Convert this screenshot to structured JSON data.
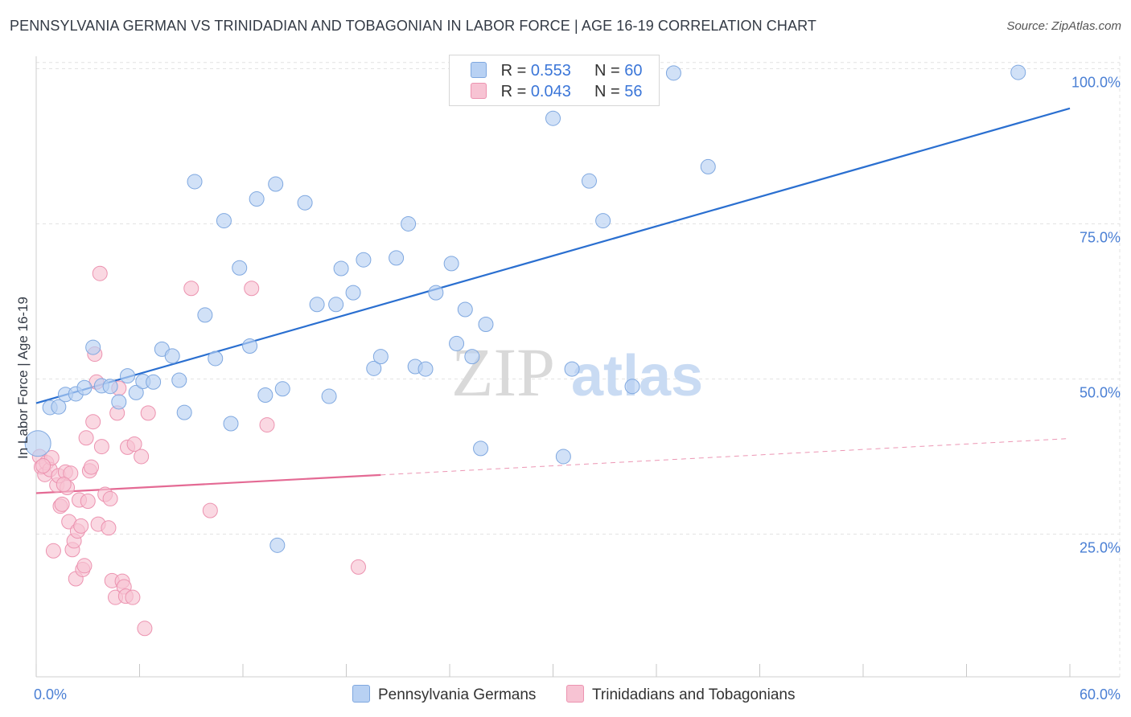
{
  "header": {
    "title": "PENNSYLVANIA GERMAN VS TRINIDADIAN AND TOBAGONIAN IN LABOR FORCE | AGE 16-19 CORRELATION CHART",
    "source": "Source: ZipAtlas.com"
  },
  "legend": {
    "series1": {
      "r_label": "R =",
      "r_value": "0.553",
      "n_label": "N =",
      "n_value": "60"
    },
    "series2": {
      "r_label": "R =",
      "r_value": "0.043",
      "n_label": "N =",
      "n_value": "56"
    }
  },
  "bottom_legend": {
    "series1_label": "Pennsylvania Germans",
    "series2_label": "Trinidadians and Tobagonians"
  },
  "watermark": {
    "zip": "ZIP",
    "atlas": "atlas"
  },
  "colors": {
    "series1_fill": "#b8d1f3",
    "series1_stroke": "#7fa8e0",
    "series1_line": "#2a6fd0",
    "series2_fill": "#f7c3d3",
    "series2_stroke": "#ec93b0",
    "series2_line": "#e46a94",
    "grid": "#e3e3e3",
    "tick_text": "#4a7fd4"
  },
  "chart_data": {
    "type": "scatter",
    "title": "PENNSYLVANIA GERMAN VS TRINIDADIAN AND TOBAGONIAN IN LABOR FORCE | AGE 16-19 CORRELATION CHART",
    "xlabel": "",
    "ylabel": "In Labor Force | Age 16-19",
    "xlim": [
      0,
      60
    ],
    "ylim": [
      2,
      102
    ],
    "x_tick_labels": [
      "0.0%",
      "60.0%"
    ],
    "y_ticks": [
      25,
      50,
      75,
      100
    ],
    "y_tick_labels": [
      "25.0%",
      "50.0%",
      "75.0%",
      "100.0%"
    ],
    "grid": true,
    "series": [
      {
        "name": "Pennsylvania Germans",
        "r": 0.553,
        "n": 60,
        "trend": {
          "x": [
            0,
            60
          ],
          "y": [
            46.1,
            93.6
          ],
          "dashed_from": null
        },
        "points": [
          [
            0.1,
            39.6,
            30
          ],
          [
            0.8,
            45.4,
            16
          ],
          [
            1.3,
            45.5,
            16
          ],
          [
            1.7,
            47.5,
            16
          ],
          [
            2.3,
            47.6,
            16
          ],
          [
            2.8,
            48.6,
            16
          ],
          [
            3.3,
            55.1,
            16
          ],
          [
            3.8,
            48.9,
            16
          ],
          [
            4.3,
            48.8,
            16
          ],
          [
            4.8,
            46.3,
            16
          ],
          [
            5.3,
            50.5,
            16
          ],
          [
            5.8,
            47.8,
            16
          ],
          [
            6.2,
            49.6,
            16
          ],
          [
            6.8,
            49.5,
            16
          ],
          [
            7.3,
            54.8,
            16
          ],
          [
            7.9,
            53.7,
            16
          ],
          [
            8.3,
            49.8,
            16
          ],
          [
            8.6,
            44.6,
            16
          ],
          [
            9.2,
            81.8,
            16
          ],
          [
            9.8,
            60.3,
            16
          ],
          [
            10.4,
            53.3,
            16
          ],
          [
            10.9,
            75.5,
            16
          ],
          [
            11.3,
            42.8,
            16
          ],
          [
            11.8,
            67.9,
            16
          ],
          [
            12.4,
            55.3,
            16
          ],
          [
            12.8,
            79.0,
            16
          ],
          [
            13.3,
            47.4,
            16
          ],
          [
            13.9,
            81.4,
            16
          ],
          [
            14.3,
            48.4,
            16
          ],
          [
            15.6,
            78.4,
            16
          ],
          [
            16.3,
            62.0,
            16
          ],
          [
            17.0,
            47.2,
            16
          ],
          [
            17.4,
            62.0,
            16
          ],
          [
            17.7,
            67.8,
            16
          ],
          [
            18.4,
            63.9,
            16
          ],
          [
            19.0,
            69.2,
            16
          ],
          [
            19.6,
            51.7,
            16
          ],
          [
            20.0,
            53.6,
            16
          ],
          [
            20.9,
            69.5,
            16
          ],
          [
            21.6,
            75.0,
            16
          ],
          [
            22.0,
            52.0,
            16
          ],
          [
            22.6,
            51.6,
            16
          ],
          [
            23.2,
            63.9,
            16
          ],
          [
            24.1,
            68.6,
            16
          ],
          [
            24.4,
            55.7,
            16
          ],
          [
            24.9,
            61.2,
            16
          ],
          [
            25.3,
            53.6,
            16
          ],
          [
            25.8,
            38.8,
            16
          ],
          [
            26.1,
            58.8,
            16
          ],
          [
            28.0,
            99.4,
            16
          ],
          [
            30.0,
            92.0,
            16
          ],
          [
            30.6,
            37.5,
            16
          ],
          [
            31.1,
            51.6,
            16
          ],
          [
            32.1,
            81.9,
            16
          ],
          [
            32.9,
            75.5,
            16
          ],
          [
            34.6,
            48.8,
            16
          ],
          [
            37.0,
            99.3,
            16
          ],
          [
            39.0,
            84.2,
            16
          ],
          [
            57.0,
            99.4,
            16
          ],
          [
            14.0,
            23.2,
            16
          ]
        ]
      },
      {
        "name": "Trinidadians and Tobagonians",
        "r": 0.043,
        "n": 56,
        "trend": {
          "x": [
            0,
            60
          ],
          "y": [
            31.6,
            40.4
          ],
          "dashed_from": 20
        },
        "points": [
          [
            0.2,
            37.5,
            16
          ],
          [
            0.3,
            35.8,
            16
          ],
          [
            0.5,
            34.6,
            16
          ],
          [
            0.6,
            36.5,
            16
          ],
          [
            0.8,
            35.4,
            16
          ],
          [
            0.9,
            37.3,
            16
          ],
          [
            1.0,
            22.3,
            16
          ],
          [
            1.2,
            32.9,
            16
          ],
          [
            1.3,
            34.4,
            16
          ],
          [
            1.4,
            29.5,
            16
          ],
          [
            1.5,
            29.8,
            16
          ],
          [
            1.7,
            35.0,
            16
          ],
          [
            1.8,
            32.5,
            16
          ],
          [
            1.9,
            27.0,
            16
          ],
          [
            2.0,
            34.8,
            16
          ],
          [
            2.1,
            22.5,
            16
          ],
          [
            2.2,
            23.9,
            16
          ],
          [
            2.3,
            17.8,
            16
          ],
          [
            2.4,
            25.5,
            16
          ],
          [
            2.5,
            30.5,
            16
          ],
          [
            2.6,
            26.3,
            16
          ],
          [
            2.7,
            19.3,
            16
          ],
          [
            2.8,
            19.9,
            16
          ],
          [
            2.9,
            40.5,
            16
          ],
          [
            3.0,
            30.3,
            16
          ],
          [
            3.1,
            35.2,
            16
          ],
          [
            3.2,
            35.8,
            16
          ],
          [
            3.3,
            43.1,
            16
          ],
          [
            3.4,
            54.0,
            16
          ],
          [
            3.5,
            49.5,
            16
          ],
          [
            3.6,
            26.6,
            16
          ],
          [
            3.7,
            67.0,
            16
          ],
          [
            3.8,
            39.1,
            16
          ],
          [
            4.0,
            31.4,
            16
          ],
          [
            4.2,
            26.0,
            16
          ],
          [
            4.3,
            30.7,
            16
          ],
          [
            4.4,
            17.5,
            16
          ],
          [
            4.6,
            14.8,
            16
          ],
          [
            4.7,
            44.5,
            16
          ],
          [
            4.8,
            48.5,
            16
          ],
          [
            5.0,
            17.4,
            16
          ],
          [
            5.1,
            16.5,
            16
          ],
          [
            5.2,
            15.0,
            16
          ],
          [
            5.3,
            39.0,
            16
          ],
          [
            5.6,
            14.8,
            16
          ],
          [
            5.7,
            39.5,
            16
          ],
          [
            6.1,
            37.5,
            16
          ],
          [
            6.3,
            9.8,
            16
          ],
          [
            6.5,
            44.5,
            16
          ],
          [
            9.0,
            64.6,
            16
          ],
          [
            10.1,
            28.8,
            16
          ],
          [
            12.5,
            64.6,
            16
          ],
          [
            13.4,
            42.6,
            16
          ],
          [
            18.7,
            19.7,
            16
          ],
          [
            0.4,
            36.0,
            16
          ],
          [
            1.6,
            33.0,
            16
          ]
        ]
      }
    ]
  }
}
